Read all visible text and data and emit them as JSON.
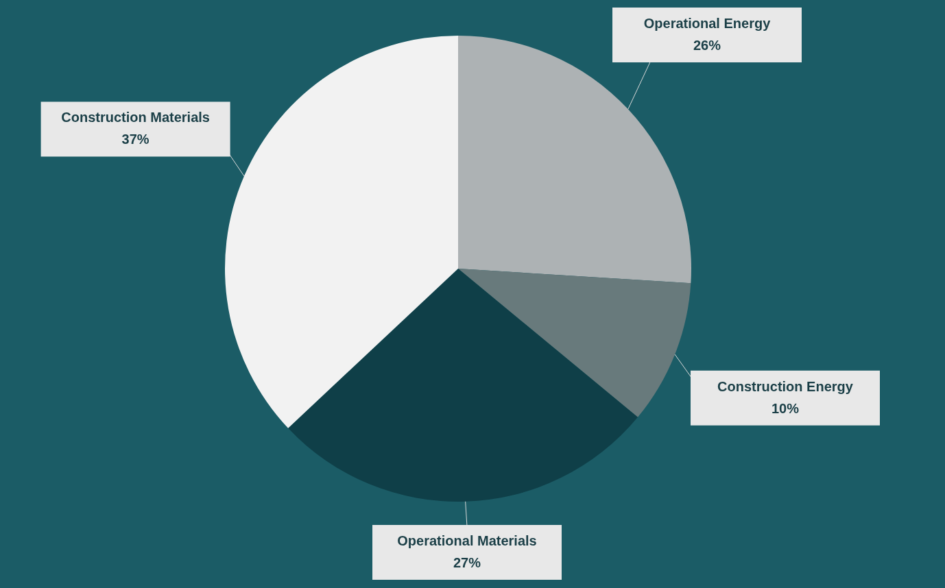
{
  "chart_data": {
    "type": "pie",
    "categories": [
      "Operational Energy",
      "Construction Energy",
      "Operational Materials",
      "Construction Materials"
    ],
    "values": [
      26,
      10,
      27,
      37
    ],
    "value_labels": [
      "26%",
      "10%",
      "27%",
      "37%"
    ],
    "colors": [
      "#adb2b4",
      "#687a7c",
      "#0f3f48",
      "#f2f2f2"
    ]
  }
}
